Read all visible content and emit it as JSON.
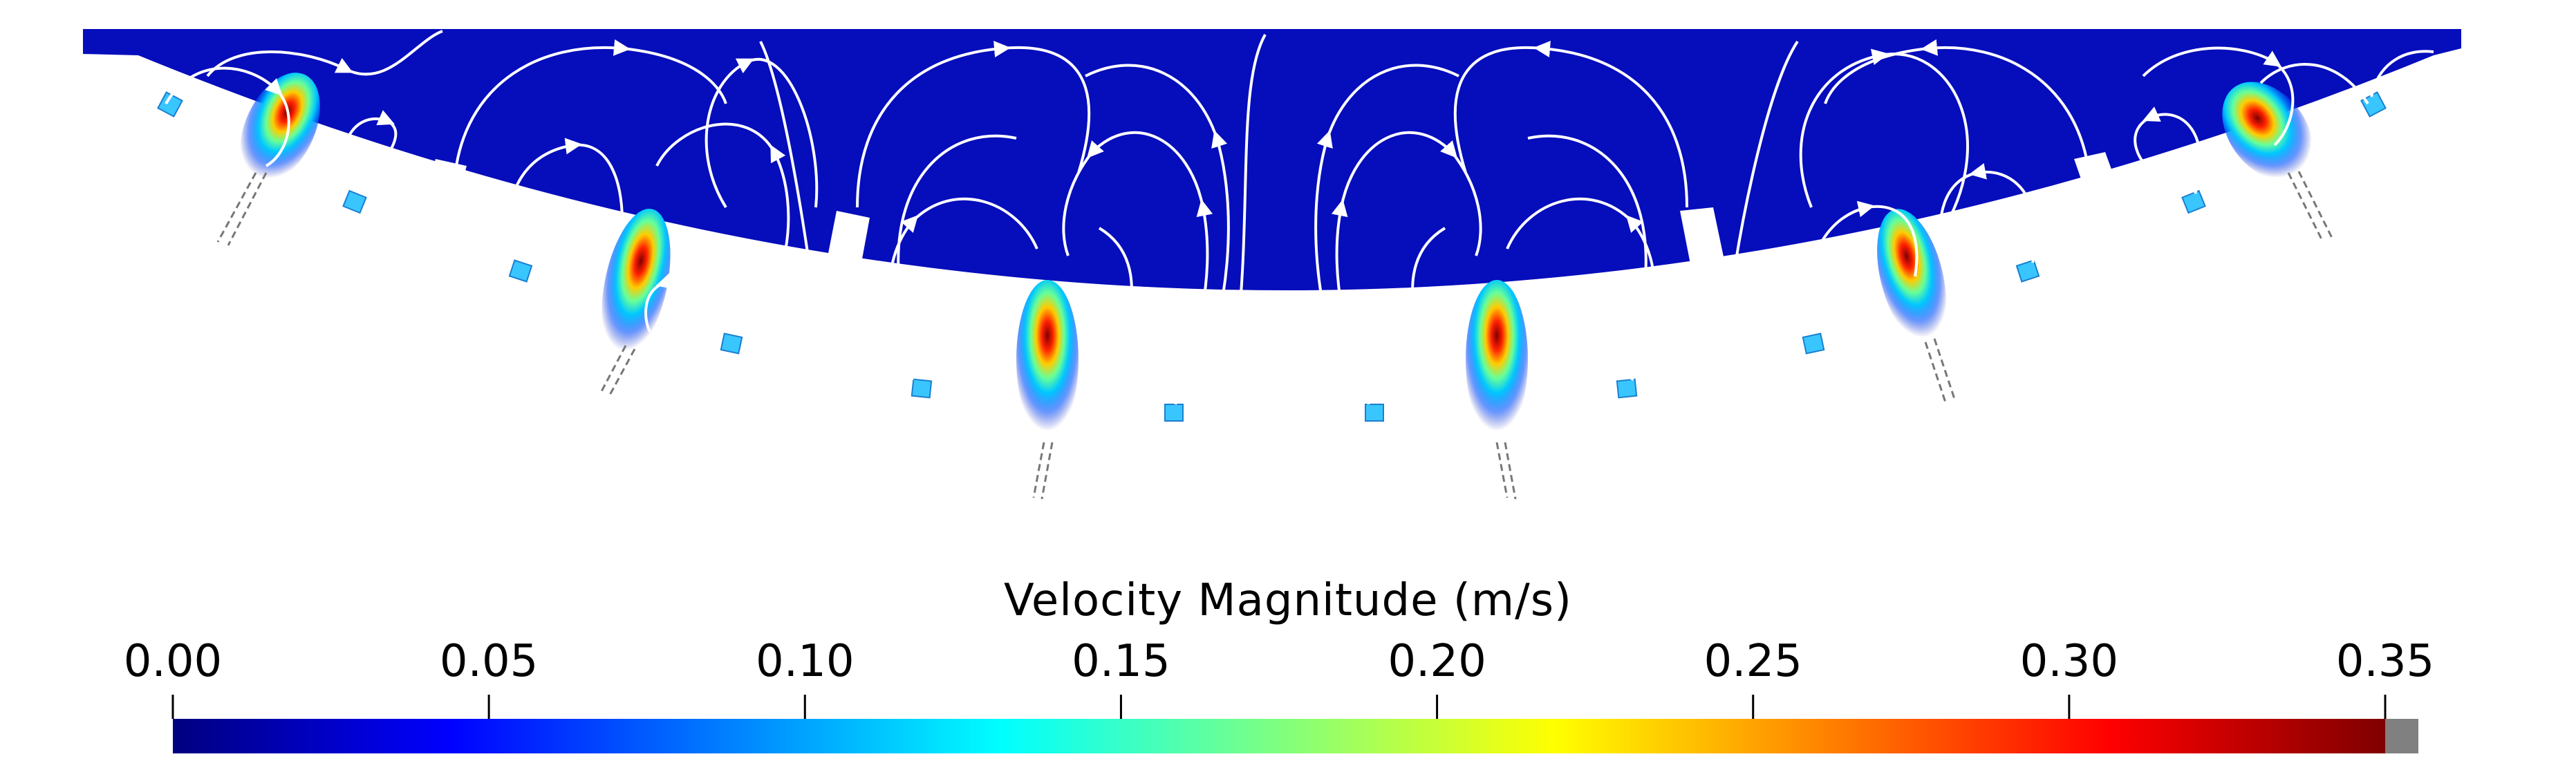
{
  "figure": {
    "description_free": true,
    "domain_colors": {
      "fluid": "#0a14b4",
      "streamline": "#ffffff",
      "nozzle": "#39c6ff"
    }
  },
  "colorbar": {
    "title": "Velocity Magnitude (m/s)",
    "ticks": [
      "0.00",
      "0.05",
      "0.10",
      "0.15",
      "0.20",
      "0.25",
      "0.30",
      "0.35"
    ],
    "range": [
      0.0,
      0.35
    ],
    "colormap": [
      "#00007f",
      "#0000ff",
      "#007fff",
      "#00ffff",
      "#7fff7f",
      "#ffff00",
      "#ff7f00",
      "#ff0000",
      "#7f0000"
    ],
    "out_of_range_color": "#808080"
  },
  "chart_data": {
    "type": "heatmap",
    "title": "",
    "colorbar_label": "Velocity Magnitude (m/s)",
    "value_range": [
      0.0,
      0.35
    ],
    "ticks": [
      0.0,
      0.05,
      0.1,
      0.15,
      0.2,
      0.25,
      0.3,
      0.35
    ]
  }
}
